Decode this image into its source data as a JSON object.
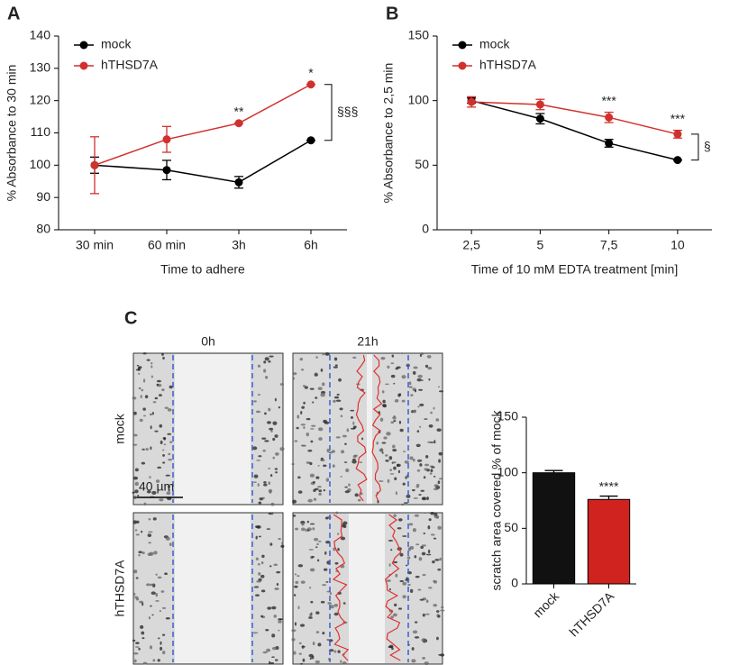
{
  "chart_data": [
    {
      "type": "line",
      "y_label": "% Absorbance to 30 min",
      "x_label": "Time to adhere",
      "categories": [
        "30 min",
        "60 min",
        "3h",
        "6h"
      ],
      "series": [
        {
          "name": "mock",
          "color": "#000000",
          "values": [
            100,
            98.5,
            94.7,
            107.7
          ],
          "errors": [
            2.5,
            3,
            1.8,
            0
          ]
        },
        {
          "name": "hTHSD7A",
          "color": "#d0312d",
          "values": [
            100,
            108,
            113,
            125
          ],
          "errors": [
            8.8,
            4,
            0,
            0
          ]
        }
      ],
      "ylim": [
        80,
        140
      ],
      "yticks": [
        80,
        90,
        100,
        110,
        120,
        130,
        140
      ],
      "annotations": [
        null,
        null,
        "**",
        "*"
      ],
      "bracket_label": "§§§"
    },
    {
      "type": "line",
      "y_label": "% Absorbance to 2,5 min",
      "x_label": "Time of 10 mM EDTA treatment [min]",
      "categories": [
        "2,5",
        "5",
        "7,5",
        "10"
      ],
      "series": [
        {
          "name": "mock",
          "color": "#000000",
          "values": [
            100,
            86,
            67,
            54
          ],
          "errors": [
            2,
            4,
            3,
            0
          ]
        },
        {
          "name": "hTHSD7A",
          "color": "#d0312d",
          "values": [
            99,
            97,
            87,
            74
          ],
          "errors": [
            4,
            4,
            4,
            3
          ]
        }
      ],
      "ylim": [
        0,
        150
      ],
      "yticks": [
        0,
        50,
        100,
        150
      ],
      "annotations": [
        null,
        null,
        "***",
        "***"
      ],
      "bracket_label": "§"
    },
    {
      "type": "bar",
      "y_label": "scratch area covered % of mock",
      "categories": [
        "mock",
        "hTHSD7A"
      ],
      "values": [
        100,
        76
      ],
      "errors": [
        2,
        3
      ],
      "colors": [
        "#111111",
        "#d0231f"
      ],
      "ylim": [
        0,
        150
      ],
      "yticks": [
        0,
        50,
        100,
        150
      ],
      "annotations": [
        null,
        "****"
      ]
    }
  ],
  "panel_labels": [
    "A",
    "B",
    "C"
  ],
  "micrographs": {
    "columns": [
      "0h",
      "21h"
    ],
    "rows": [
      "mock",
      "hTHSD7A"
    ],
    "scale_bar": "40 µm"
  }
}
